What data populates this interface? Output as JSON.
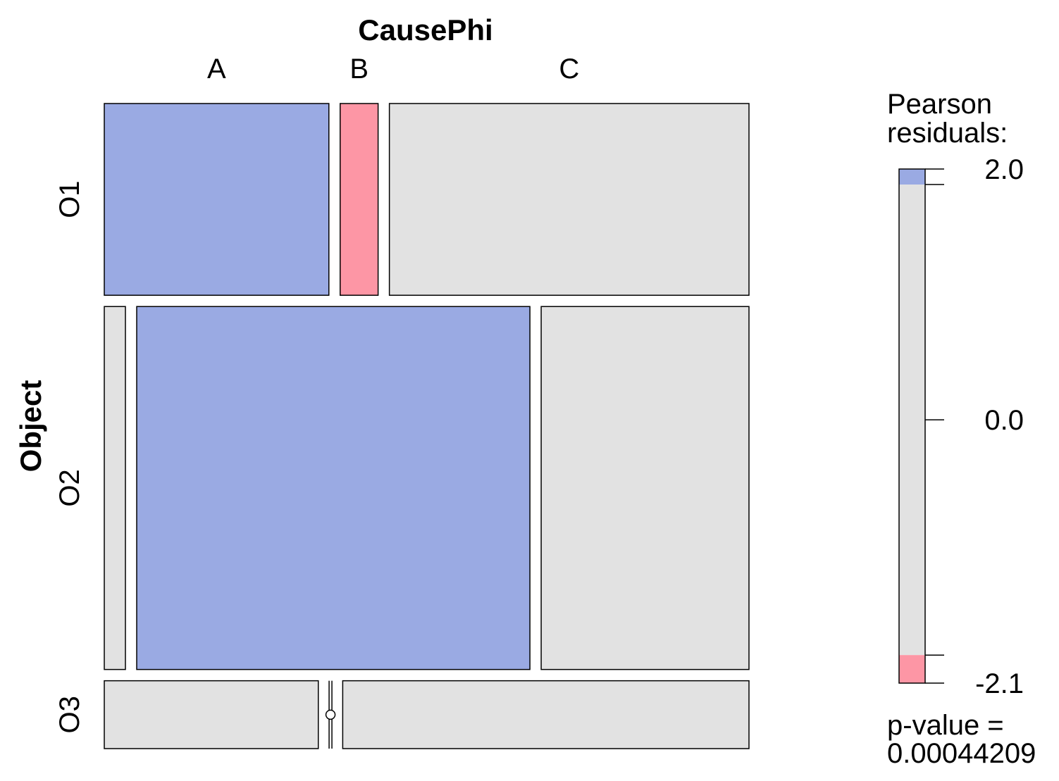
{
  "chart_data": {
    "type": "mosaic",
    "x_variable": "CausePhi",
    "y_variable": "Object",
    "columns": [
      "A",
      "B",
      "C"
    ],
    "rows": [
      "O1",
      "O2",
      "O3"
    ],
    "row_proportions": [
      0.308,
      0.583,
      0.109
    ],
    "cell_proportions": [
      [
        0.361,
        0.061,
        0.578
      ],
      [
        0.034,
        0.632,
        0.334
      ],
      [
        0.344,
        0.003,
        0.653
      ]
    ],
    "cell_shading": [
      [
        "positive",
        "negative",
        "neutral"
      ],
      [
        "neutral",
        "positive",
        "neutral"
      ],
      [
        "neutral",
        "neutral",
        "neutral"
      ]
    ],
    "legend": {
      "title_line1": "Pearson",
      "title_line2": "residuals:",
      "range": [
        -2.1,
        2.0
      ],
      "cutoffs": [
        -2.0,
        2.0
      ],
      "ticks": [
        {
          "value": 2.0,
          "label": "2.0"
        },
        {
          "value": 0.0,
          "label": "0.0"
        },
        {
          "value": -2.1,
          "label": "-2.1"
        }
      ],
      "pvalue_line1": "p-value =",
      "pvalue_line2": "0.00044209"
    },
    "colors": {
      "positive": "#9AAAE3",
      "negative": "#FD96A5",
      "neutral": "#E2E2E2",
      "border": "#000000"
    }
  }
}
